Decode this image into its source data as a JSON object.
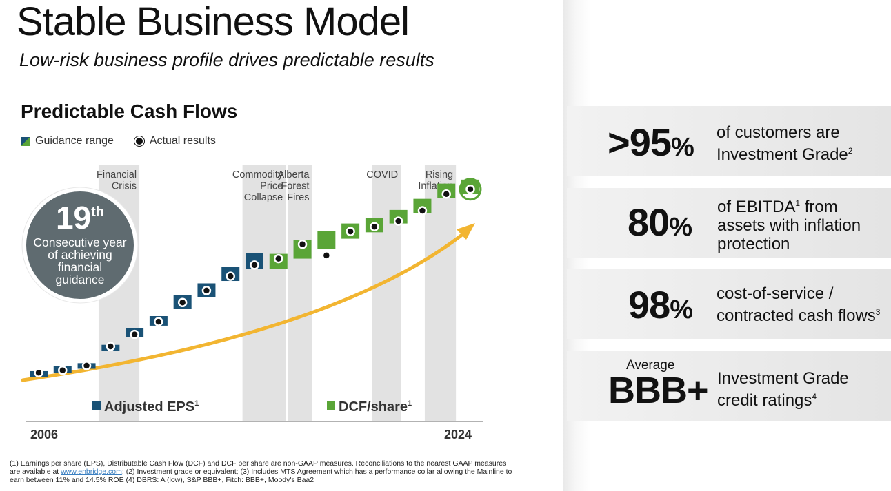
{
  "header": {
    "title": "Stable Business Model",
    "subtitle": "Low-risk business profile drives predictable results"
  },
  "chart_title": "Predictable Cash Flows",
  "legend": {
    "guidance": "Guidance range",
    "actual": "Actual results"
  },
  "badge": {
    "number": "19",
    "suffix": "th",
    "text_lines": [
      "Consecutive year",
      "of achieving",
      "financial",
      "guidance"
    ]
  },
  "stats": [
    {
      "big": ">95",
      "unit": "%",
      "desc_lines": [
        "of customers are",
        "Investment Grade"
      ],
      "desc_sup": "2"
    },
    {
      "big": "80",
      "unit": "%",
      "desc_lines": [
        "of EBITDA",
        "assets with inflation",
        "protection"
      ],
      "desc_sup_inline": "1",
      "desc_line1_tail": " from"
    },
    {
      "big": "98",
      "unit": "%",
      "desc_lines": [
        "cost-of-service /",
        "contracted cash flows"
      ],
      "desc_sup": "3"
    },
    {
      "prefix": "Average",
      "big": "BBB+",
      "unit": "",
      "desc_lines": [
        "Investment Grade",
        "credit ratings"
      ],
      "desc_sup": "4"
    }
  ],
  "footnote": {
    "part1": "(1) Earnings per share (EPS), Distributable Cash Flow (DCF) and DCF per share are non-GAAP measures. Reconciliations to the nearest GAAP measures are available at ",
    "link": "www.enbridge.com",
    "part2": "; (2) Investment grade or equivalent; (3) Includes MTS Agreement which has a performance collar allowing the Mainline to earn between 11% and 14.5% ROE (4) DBRS: A (low), S&P BBB+, Fitch: BBB+, Moody's Baa2"
  },
  "colors": {
    "eps": "#1a5276",
    "dcf": "#5aa537",
    "arrow": "#f2b531",
    "band": "#e2e2e2",
    "badge": "#5f6b70"
  },
  "chart_data": {
    "type": "scatter",
    "x_start_label": "2006",
    "x_end_label": "2024",
    "series": [
      {
        "name": "Adjusted EPS",
        "name_sup": "1",
        "kind": "guidance+actual",
        "x": [
          2006,
          2007,
          2008,
          2009,
          2010,
          2011,
          2012,
          2013,
          2014,
          2015
        ],
        "range_low": [
          1.1,
          1.15,
          1.2,
          1.42,
          1.6,
          1.74,
          1.95,
          2.1,
          2.3,
          2.45
        ],
        "range_high": [
          1.17,
          1.23,
          1.27,
          1.5,
          1.71,
          1.86,
          2.12,
          2.27,
          2.48,
          2.65
        ],
        "actual": [
          1.15,
          1.18,
          1.24,
          1.48,
          1.63,
          1.79,
          2.03,
          2.18,
          2.36,
          2.5
        ]
      },
      {
        "name": "DCF/share",
        "name_sup": "1",
        "kind": "guidance+actual",
        "x": [
          2016,
          2017,
          2018,
          2019,
          2020,
          2021,
          2022,
          2023,
          2024
        ],
        "range_low": [
          2.45,
          2.58,
          2.7,
          2.83,
          2.91,
          3.02,
          3.15,
          3.34,
          3.39
        ],
        "range_high": [
          2.64,
          2.81,
          2.93,
          3.02,
          3.09,
          3.19,
          3.33,
          3.52,
          3.57
        ],
        "actual": [
          2.58,
          2.76,
          2.62,
          2.92,
          2.98,
          3.05,
          3.18,
          3.39,
          3.45
        ]
      }
    ],
    "bands": [
      {
        "label_lines": [
          "Financial",
          "Crisis"
        ],
        "x_from": 2008.5,
        "x_to": 2010.2
      },
      {
        "label_lines": [
          "Commodity",
          "Price",
          "Collapse"
        ],
        "x_from": 2014.5,
        "x_to": 2016.3
      },
      {
        "label_lines": [
          "Alberta",
          "Forest",
          "Fires"
        ],
        "x_from": 2016.4,
        "x_to": 2017.4
      },
      {
        "label_lines": [
          "COVID"
        ],
        "x_from": 2019.9,
        "x_to": 2021.1
      },
      {
        "label_lines": [
          "Rising",
          "Inflation"
        ],
        "x_from": 2022.1,
        "x_to": 2023.4
      }
    ],
    "ylim": [
      0.6,
      3.75
    ]
  }
}
